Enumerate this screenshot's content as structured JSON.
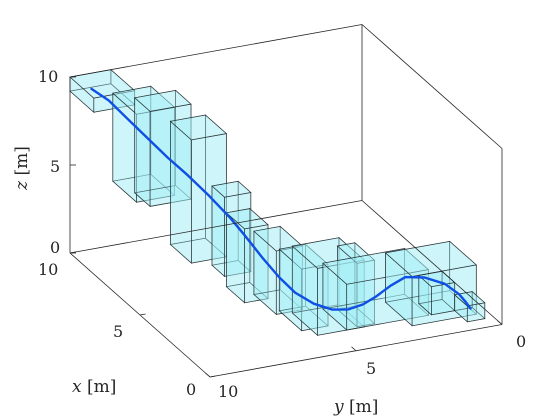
{
  "chart_data": {
    "type": "3d-path",
    "xlabel_var": "x",
    "xlabel_unit": " [m]",
    "ylabel_var": "y",
    "ylabel_unit": " [m]",
    "zlabel_var": "z",
    "zlabel_unit": " [m]",
    "xlim": [
      0,
      10
    ],
    "ylim": [
      0,
      10
    ],
    "zlim": [
      0,
      10
    ],
    "xticks": [
      "0",
      "5",
      "10"
    ],
    "yticks": [
      "0",
      "5",
      "10"
    ],
    "zticks": [
      "0",
      "5",
      "10"
    ],
    "grid": false,
    "colors": {
      "box_fill": "#9ff0f5",
      "box_edge": "#1e2428",
      "trajectory": "#0f4fe6",
      "axes": "#262626"
    },
    "corridor_boxes": [
      {
        "x": [
          8.3,
          10.0
        ],
        "y": [
          8.6,
          10.0
        ],
        "z": [
          9.2,
          10.0
        ]
      },
      {
        "x": [
          6.7,
          8.4
        ],
        "y": [
          8.0,
          9.3
        ],
        "z": [
          5.0,
          10.0
        ]
      },
      {
        "x": [
          7.2,
          8.3
        ],
        "y": [
          7.2,
          8.6
        ],
        "z": [
          4.2,
          9.6
        ]
      },
      {
        "x": [
          5.5,
          7.0
        ],
        "y": [
          6.8,
          8.0
        ],
        "z": [
          2.0,
          9.0
        ]
      },
      {
        "x": [
          4.8,
          5.7
        ],
        "y": [
          6.3,
          7.2
        ],
        "z": [
          1.5,
          6.0
        ]
      },
      {
        "x": [
          4.2,
          5.5
        ],
        "y": [
          6.0,
          6.8
        ],
        "z": [
          0.3,
          4.5
        ]
      },
      {
        "x": [
          3.4,
          5.0
        ],
        "y": [
          5.2,
          6.1
        ],
        "z": [
          0.0,
          3.6
        ]
      },
      {
        "x": [
          2.0,
          3.6
        ],
        "y": [
          5.0,
          5.9
        ],
        "z": [
          0.0,
          3.5
        ]
      },
      {
        "x": [
          1.5,
          3.3
        ],
        "y": [
          4.0,
          5.6
        ],
        "z": [
          0.0,
          3.8
        ]
      },
      {
        "x": [
          1.6,
          3.0
        ],
        "y": [
          3.6,
          4.2
        ],
        "z": [
          0.0,
          3.6
        ]
      },
      {
        "x": [
          1.5,
          3.2
        ],
        "y": [
          1.8,
          4.6
        ],
        "z": [
          0.0,
          2.6
        ]
      },
      {
        "x": [
          1.0,
          2.9
        ],
        "y": [
          0.4,
          2.6
        ],
        "z": [
          0.0,
          2.8
        ]
      },
      {
        "x": [
          1.5,
          2.4
        ],
        "y": [
          0.9,
          1.7
        ],
        "z": [
          0.0,
          1.6
        ]
      },
      {
        "x": [
          0.6,
          1.5
        ],
        "y": [
          0.3,
          0.9
        ],
        "z": [
          0.0,
          0.9
        ]
      }
    ],
    "trajectory": {
      "x": [
        9.3,
        8.9,
        8.4,
        7.8,
        7.2,
        6.6,
        5.9,
        5.2,
        4.8,
        4.2,
        3.6,
        3.1,
        2.6,
        2.1,
        1.8,
        1.6,
        1.5,
        1.7,
        2.1,
        2.2,
        2.0,
        1.6,
        1.3,
        1.1
      ],
      "y": [
        9.6,
        9.2,
        8.8,
        8.4,
        8.0,
        7.6,
        7.2,
        6.8,
        6.5,
        6.2,
        5.9,
        5.6,
        5.2,
        4.8,
        4.4,
        4.0,
        3.6,
        3.0,
        2.3,
        1.6,
        1.0,
        0.7,
        0.6,
        0.55
      ],
      "z": [
        9.7,
        9.2,
        8.4,
        7.6,
        6.8,
        6.1,
        5.3,
        4.4,
        3.6,
        2.7,
        1.9,
        1.3,
        0.9,
        0.8,
        0.9,
        1.2,
        1.6,
        1.9,
        1.9,
        1.6,
        1.2,
        0.8,
        0.5,
        0.3
      ]
    }
  }
}
